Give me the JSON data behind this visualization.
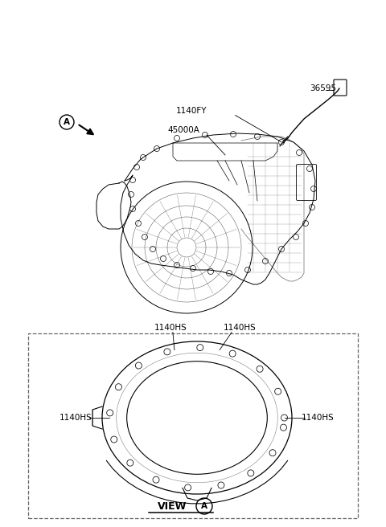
{
  "background_color": "#ffffff",
  "fig_width": 4.8,
  "fig_height": 6.56,
  "dpi": 100,
  "labels": {
    "part_36595": "36595",
    "part_1140FY": "1140FY",
    "part_45000A": "45000A",
    "view_label": "VIEW",
    "view_circle": "A",
    "arrow_circle": "A",
    "hs_top_left": "1140HS",
    "hs_top_right": "1140HS",
    "hs_mid_left": "1140HS",
    "hs_mid_right": "1140HS"
  },
  "colors": {
    "line": "#000000",
    "text": "#000000",
    "dashed_box": "#888888"
  },
  "font_sizes": {
    "part_label": 7.5,
    "view_label": 9,
    "circle_label": 7
  }
}
